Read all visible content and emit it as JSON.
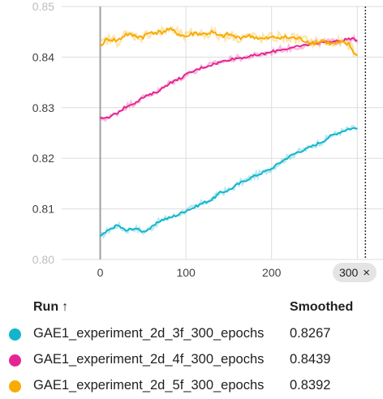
{
  "chart_data": {
    "type": "line",
    "x_ticks": [
      "0",
      "100",
      "200",
      "300"
    ],
    "y_ticks": [
      "0.81",
      "0.82",
      "0.83",
      "0.84"
    ],
    "y_ticks_partial": [
      "0.80",
      "0.85"
    ],
    "xlim": [
      -45,
      330
    ],
    "ylim": [
      0.8,
      0.85
    ],
    "grid": true,
    "cursor_x": 300,
    "series": [
      {
        "name": "GAE1_experiment_2d_3f_300_epochs",
        "color": "#12b5cb",
        "x": [
          0,
          10,
          20,
          30,
          40,
          50,
          60,
          70,
          80,
          90,
          100,
          110,
          120,
          130,
          140,
          150,
          160,
          170,
          180,
          190,
          200,
          210,
          220,
          230,
          240,
          250,
          260,
          270,
          280,
          290,
          300
        ],
        "y": [
          0.8045,
          0.8058,
          0.8068,
          0.8057,
          0.8062,
          0.8055,
          0.8063,
          0.8077,
          0.8082,
          0.8088,
          0.8097,
          0.8103,
          0.8112,
          0.8118,
          0.8132,
          0.8137,
          0.8148,
          0.8157,
          0.8165,
          0.8172,
          0.818,
          0.8192,
          0.8203,
          0.8212,
          0.8218,
          0.8226,
          0.8234,
          0.8245,
          0.8252,
          0.8258,
          0.826
        ]
      },
      {
        "name": "GAE1_experiment_2d_4f_300_epochs",
        "color": "#e52592",
        "x": [
          0,
          10,
          20,
          30,
          40,
          50,
          60,
          70,
          80,
          90,
          100,
          110,
          120,
          130,
          140,
          150,
          160,
          170,
          180,
          190,
          200,
          210,
          220,
          230,
          240,
          250,
          260,
          270,
          280,
          290,
          300
        ],
        "y": [
          0.8278,
          0.828,
          0.829,
          0.8302,
          0.831,
          0.832,
          0.8327,
          0.8335,
          0.8348,
          0.8355,
          0.8365,
          0.8373,
          0.838,
          0.8385,
          0.839,
          0.8395,
          0.8398,
          0.84,
          0.8403,
          0.8406,
          0.841,
          0.8415,
          0.8417,
          0.842,
          0.8424,
          0.8427,
          0.843,
          0.843,
          0.8432,
          0.8436,
          0.8434
        ]
      },
      {
        "name": "GAE1_experiment_2d_5f_300_epochs",
        "color": "#f9ab00",
        "x": [
          0,
          10,
          20,
          30,
          40,
          50,
          60,
          70,
          80,
          90,
          100,
          110,
          120,
          130,
          140,
          150,
          160,
          170,
          180,
          190,
          200,
          210,
          220,
          230,
          240,
          250,
          260,
          270,
          280,
          290,
          300
        ],
        "y": [
          0.8425,
          0.8436,
          0.8432,
          0.8445,
          0.8442,
          0.844,
          0.845,
          0.8448,
          0.8455,
          0.8447,
          0.844,
          0.8448,
          0.8445,
          0.8449,
          0.844,
          0.8445,
          0.8438,
          0.8442,
          0.844,
          0.8435,
          0.8438,
          0.844,
          0.8438,
          0.8437,
          0.8432,
          0.8428,
          0.8432,
          0.8425,
          0.8428,
          0.8425,
          0.84
        ]
      }
    ]
  },
  "cursor_badge": {
    "label": "300",
    "close": "×"
  },
  "legend": {
    "header_run": "Run",
    "header_sort_icon": "↑",
    "header_smoothed": "Smoothed",
    "rows": [
      {
        "name": "GAE1_experiment_2d_3f_300_epochs",
        "value": "0.8267",
        "color": "#12b5cb"
      },
      {
        "name": "GAE1_experiment_2d_4f_300_epochs",
        "value": "0.8439",
        "color": "#e52592"
      },
      {
        "name": "GAE1_experiment_2d_5f_300_epochs",
        "value": "0.8392",
        "color": "#f9ab00"
      }
    ]
  }
}
